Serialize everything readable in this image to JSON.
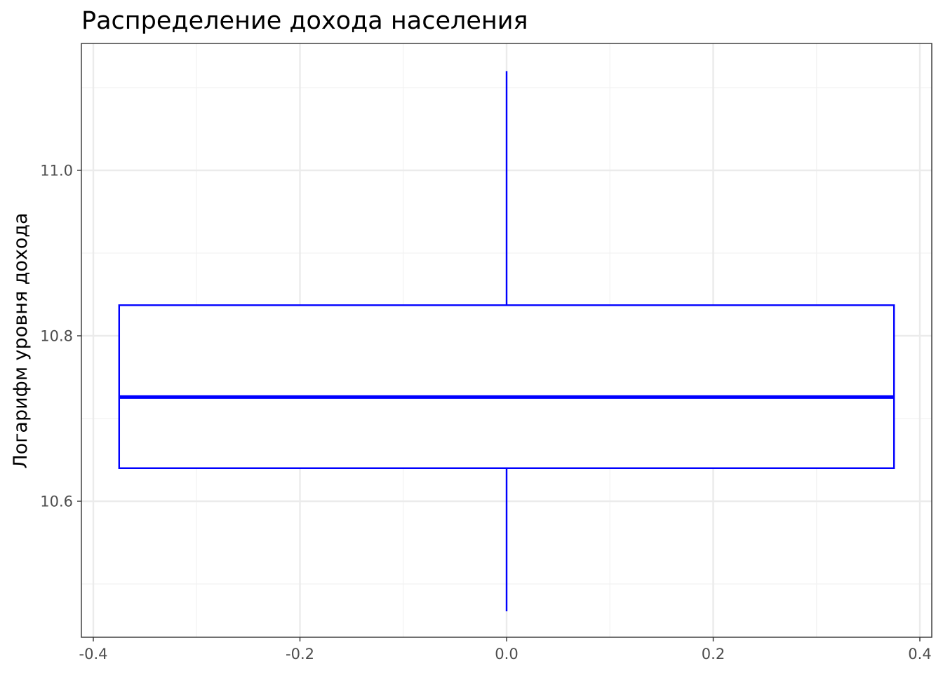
{
  "chart_data": {
    "type": "boxplot",
    "title": "Распределение дохода населения",
    "xlabel": "",
    "ylabel": "Логарифм уровня дохода",
    "xlim": [
      -0.4,
      0.4
    ],
    "ylim": [
      10.45,
      11.15
    ],
    "x_ticks": [
      -0.4,
      -0.2,
      0.0,
      0.2,
      0.4
    ],
    "x_tick_labels": [
      "-0.4",
      "-0.2",
      "0.0",
      "0.2",
      "0.4"
    ],
    "y_ticks": [
      10.6,
      10.8,
      11.0
    ],
    "y_tick_labels": [
      "10.6",
      "10.8",
      "11.0"
    ],
    "grid": true,
    "legend": "none",
    "box": {
      "x_center": 0.0,
      "x_left": -0.375,
      "x_right": 0.375,
      "whisker_low": 10.467,
      "q1": 10.64,
      "median": 10.726,
      "q3": 10.837,
      "whisker_high": 11.12
    },
    "colors": {
      "box": "#0000ff",
      "grid_major": "#ebebeb",
      "grid_minor": "#f2f2f2",
      "panel_border": "#333333",
      "tick_text": "#4d4d4d"
    }
  }
}
